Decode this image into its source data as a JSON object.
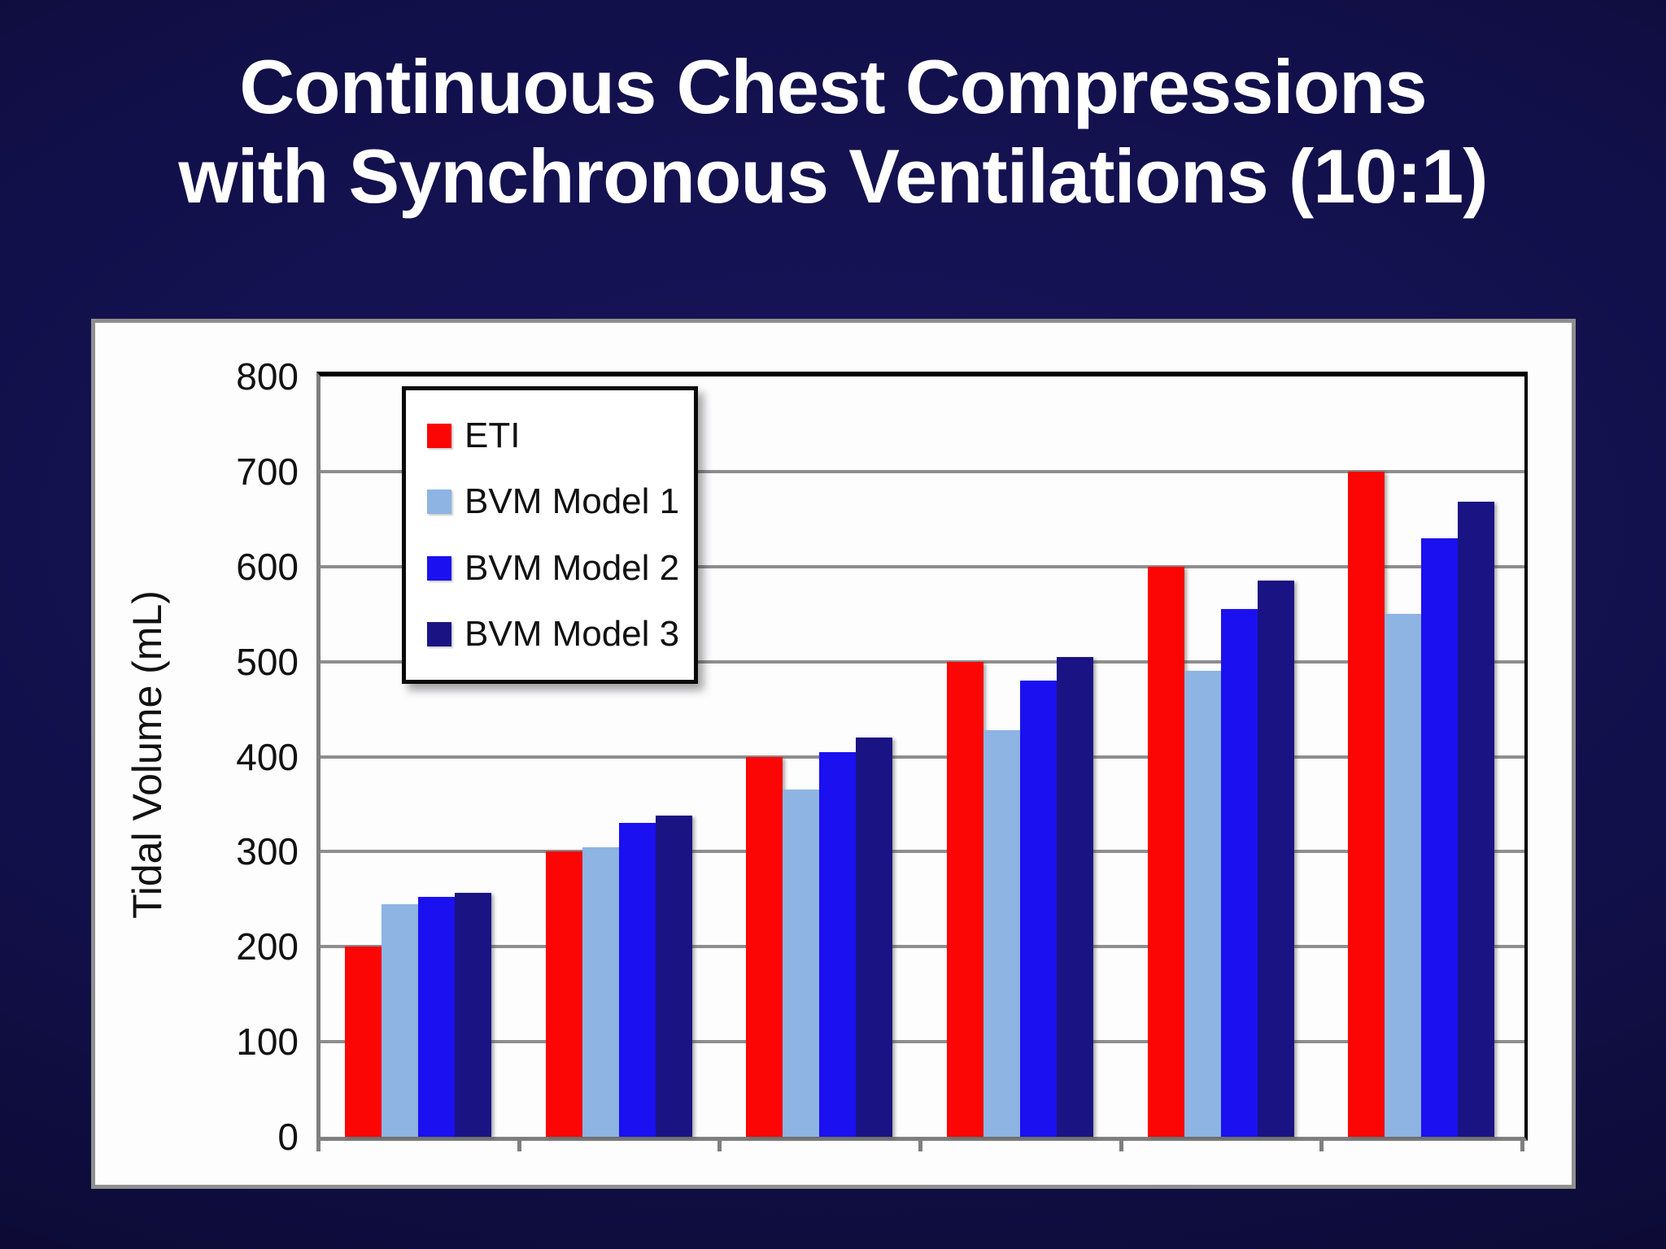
{
  "title": {
    "line1": "Continuous Chest Compressions",
    "line2": "with Synchronous Ventilations (10:1)"
  },
  "colors": {
    "background_center": "#17155c",
    "background_edge": "#070623",
    "panel": "#fdfdfe",
    "panel_border": "#8f8f8f",
    "plot_border_black": "#000000",
    "axis_gray": "#7f7f7f",
    "gridline": "#8e8e8e",
    "title_text": "#ffffff",
    "label_text": "#111111",
    "legend_border": "#0a0a0a"
  },
  "chart_data": {
    "type": "bar",
    "title": "Continuous Chest Compressions with Synchronous Ventilations (10:1)",
    "categories": [
      "",
      "",
      "",
      "",
      "",
      ""
    ],
    "series": [
      {
        "name": "ETI",
        "color": "#fb0505",
        "values": [
          200,
          300,
          400,
          500,
          600,
          700
        ]
      },
      {
        "name": "BVM Model 1",
        "color": "#8db4e2",
        "values": [
          245,
          305,
          365,
          428,
          490,
          550
        ]
      },
      {
        "name": "BVM Model 2",
        "color": "#1b10f0",
        "values": [
          252,
          330,
          405,
          480,
          555,
          630
        ]
      },
      {
        "name": "BVM Model 3",
        "color": "#1a1384",
        "values": [
          257,
          338,
          420,
          505,
          585,
          668
        ]
      }
    ],
    "ylabel": "Tidal Volume (mL)",
    "ylim": [
      0,
      800
    ],
    "yticks": [
      0,
      100,
      200,
      300,
      400,
      500,
      600,
      700,
      800
    ],
    "grid": true,
    "legend_position": "upper-left-inside",
    "x_axis_labels_visible": false,
    "x_tick_count": 7
  }
}
